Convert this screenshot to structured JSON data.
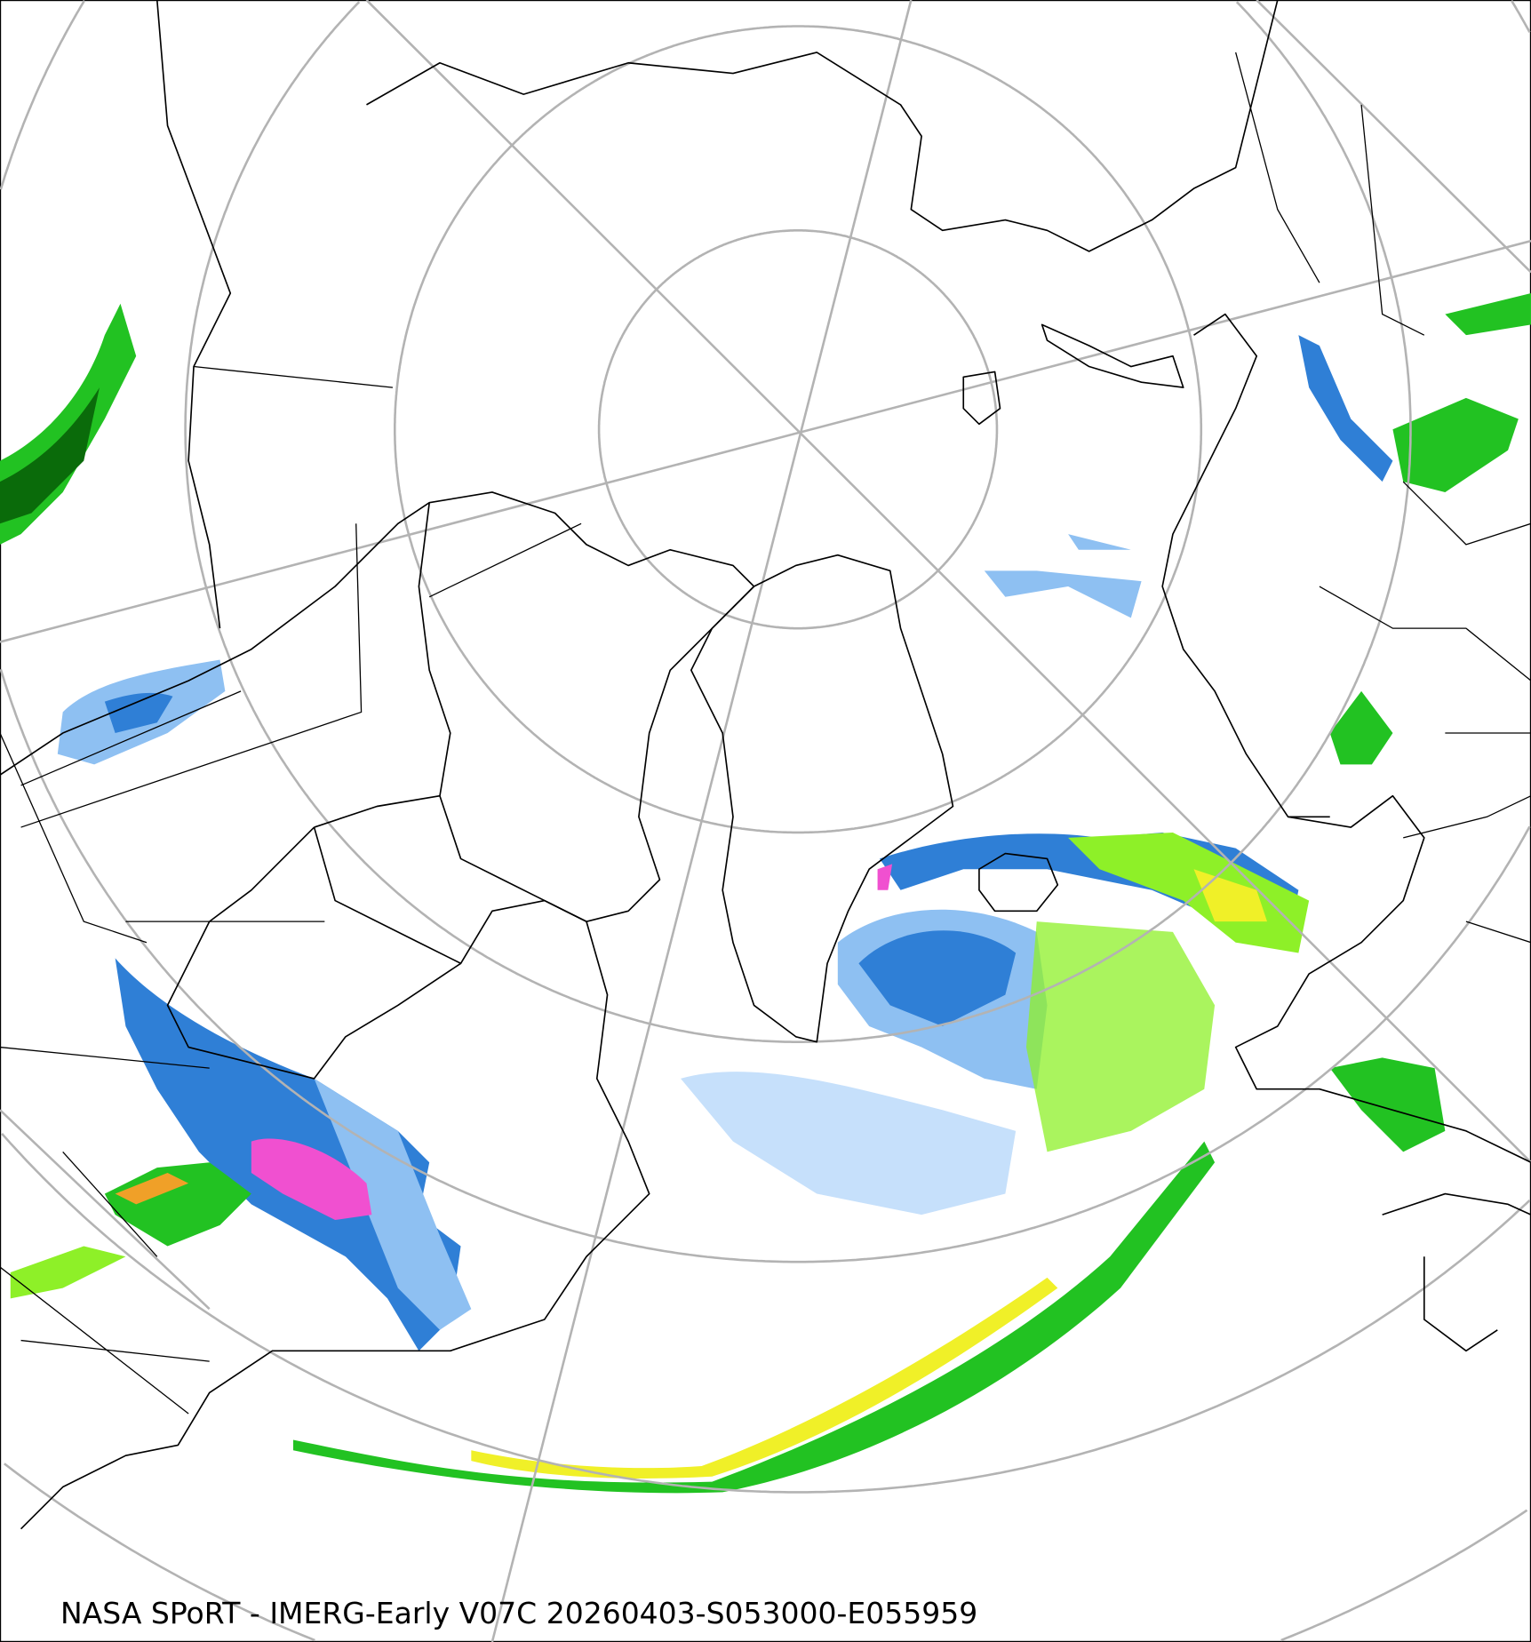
{
  "caption": "NASA SPoRT - IMERG-Early V07C 20260403-S053000-E055959",
  "map": {
    "projection": "north-polar-stereographic",
    "graticule_color": "#b3b3b3",
    "coastline_color": "#000000",
    "precip_colors": {
      "very_light_blue": "#c6e0fb",
      "light_blue": "#8ec0f2",
      "blue": "#2f7fd6",
      "dark_blue": "#1a5fb4",
      "dark_green": "#0a6b0a",
      "green": "#22c222",
      "light_green": "#8ef028",
      "yellow": "#f0f028",
      "orange": "#f0a028",
      "red": "#e03020",
      "pink": "#f050d0"
    }
  }
}
